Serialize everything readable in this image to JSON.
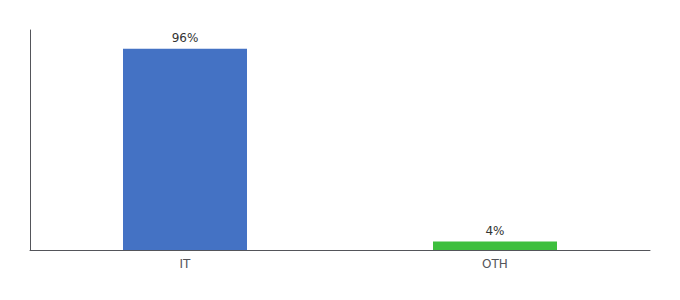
{
  "chart_data": {
    "type": "bar",
    "categories": [
      "IT",
      "OTH"
    ],
    "values": [
      96,
      4
    ],
    "value_labels": [
      "96%",
      "4%"
    ],
    "colors": [
      "#4472c4",
      "#3dbf3d"
    ],
    "ylim": [
      0,
      105
    ],
    "data_labels": true,
    "tick_labels": "x",
    "grid": false
  }
}
